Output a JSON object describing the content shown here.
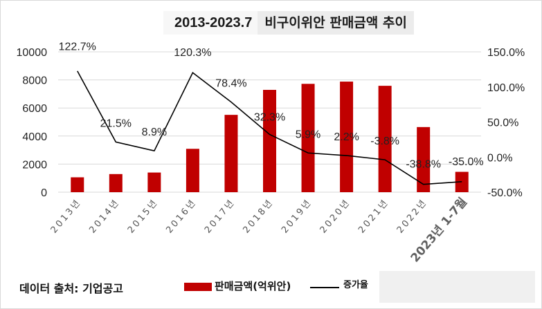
{
  "title": {
    "year_range": "2013-2023.7",
    "main": "비구이위안 판매금액 추이"
  },
  "source_label": "데이터 출처: 기업공고",
  "legend": {
    "bar_label": "판매금액(억위안)",
    "line_label": "증가율"
  },
  "colors": {
    "bar": "#c00000",
    "line": "#000000",
    "grid": "#d9d9d9"
  },
  "chart_data": {
    "type": "bar",
    "categories": [
      "2013년",
      "2014년",
      "2015년",
      "2016년",
      "2017년",
      "2018년",
      "2019년",
      "2020년",
      "2021년",
      "2022년",
      "2023년 1-7월"
    ],
    "series": [
      {
        "name": "판매금액(억위안)",
        "type": "bar",
        "axis": "left",
        "values": [
          1060,
          1290,
          1400,
          3090,
          5510,
          7290,
          7720,
          7880,
          7580,
          4640,
          1450
        ]
      },
      {
        "name": "증가율",
        "type": "line",
        "axis": "right",
        "values": [
          122.7,
          21.5,
          8.9,
          120.3,
          78.4,
          32.3,
          5.9,
          2.2,
          -3.8,
          -38.8,
          -35.0
        ],
        "labels": [
          "122.7%",
          "21.5%",
          "8.9%",
          "120.3%",
          "78.4%",
          "32.3%",
          "5.9%",
          "2.2%",
          "-3.8%",
          "-38.8%",
          "-35.0%"
        ]
      }
    ],
    "y_left": {
      "min": 0,
      "max": 10000,
      "ticks": [
        "10000",
        "8000",
        "6000",
        "4000",
        "2000",
        "0"
      ]
    },
    "y_right": {
      "min": -50,
      "max": 150,
      "ticks": [
        "150.0%",
        "100.0%",
        "50.0%",
        "0.0%",
        "-50.0%"
      ]
    },
    "grid": true,
    "legend_position": "bottom"
  }
}
